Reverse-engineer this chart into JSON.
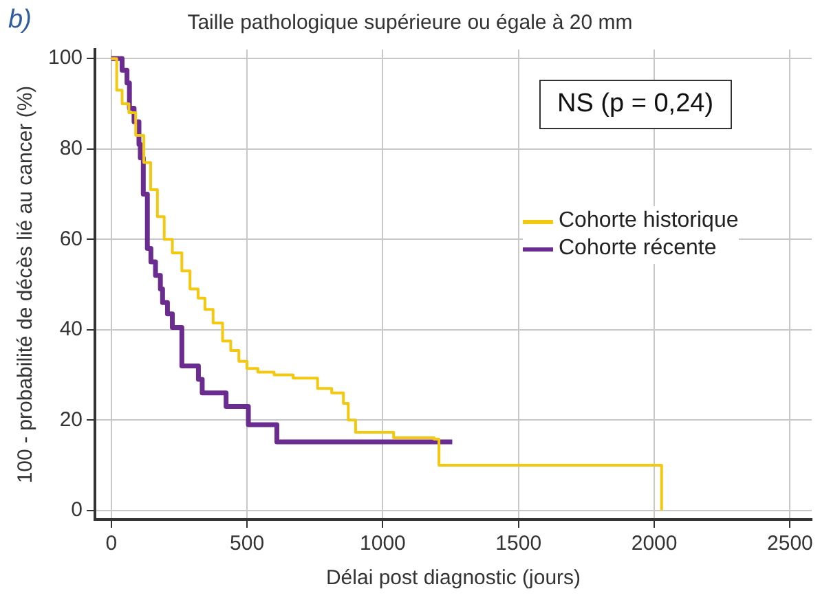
{
  "chart_data": {
    "type": "step",
    "title": "Taille pathologique supérieure ou égale à 20 mm",
    "xlabel": "Délai post diagnostic (jours)",
    "ylabel": "100 - probabilité de décès lié au cancer (%)",
    "annotations": [
      "b)",
      "NS (p = 0,24)"
    ],
    "xlim": [
      -60,
      2580
    ],
    "xticks": [
      0,
      500,
      1000,
      1500,
      2000,
      2500
    ],
    "ylim": [
      -2,
      102
    ],
    "yticks": [
      0,
      20,
      40,
      60,
      80,
      100
    ],
    "grid": true,
    "legend": "right",
    "marker": "none",
    "line_style": "solid",
    "series": [
      {
        "name": "Cohorte historique",
        "color": "#f2c811",
        "x": [
          0,
          20,
          40,
          65,
          90,
          120,
          145,
          170,
          195,
          225,
          260,
          290,
          320,
          345,
          375,
          410,
          413,
          440,
          470,
          500,
          540,
          600,
          670,
          690,
          760,
          812,
          855,
          873,
          900,
          1040,
          1189,
          1207,
          2026,
          2027
        ],
        "values": [
          100,
          93,
          90,
          88,
          83,
          77,
          71,
          65,
          60,
          57,
          53,
          49,
          47,
          44.5,
          41.5,
          37.5,
          37.5,
          35.4,
          33,
          31.4,
          30.6,
          30,
          29.3,
          29.3,
          27,
          26,
          23.7,
          20,
          17.3,
          16.1,
          15.8,
          10,
          10,
          0
        ]
      },
      {
        "name": "Cohorte récente",
        "color": "#6a2c8e",
        "x": [
          0,
          40,
          58,
          67,
          84,
          102,
          107,
          118,
          133,
          146,
          163,
          181,
          189,
          207,
          225,
          260,
          321,
          335,
          423,
          505,
          610,
          1256
        ],
        "values": [
          100,
          97.4,
          94.6,
          89,
          86,
          81,
          78,
          70,
          58,
          55,
          52,
          49,
          46,
          43.5,
          40.5,
          32,
          29,
          26,
          23,
          19,
          15.2,
          15.2
        ]
      }
    ]
  }
}
